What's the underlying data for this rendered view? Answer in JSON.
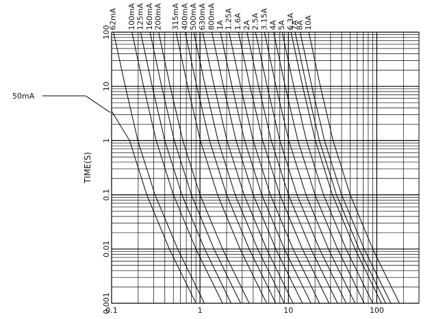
{
  "chart_data": {
    "type": "line",
    "y_label": "TIME(S)",
    "log_x": true,
    "log_y": true,
    "grid": true,
    "minor_grid": true,
    "color": "#000000",
    "xlim": [
      0.1,
      300
    ],
    "xticks": [
      0.1,
      1,
      10,
      100
    ],
    "ylim": [
      0.001,
      100
    ],
    "yticks": [
      100,
      10,
      1,
      0.1,
      0.01,
      0.001
    ],
    "series": [
      {
        "name": "50mA",
        "x": [
          0.1,
          0.16,
          0.25,
          0.45,
          0.9
        ],
        "values": [
          3.5,
          1,
          0.1,
          0.01,
          0.001
        ]
      },
      {
        "name": "62mA",
        "x": [
          0.105,
          0.143,
          0.198,
          0.31,
          0.56,
          1.12
        ],
        "values": [
          100,
          10,
          1,
          0.1,
          0.01,
          0.001
        ]
      },
      {
        "name": "100mA",
        "x": [
          0.17,
          0.23,
          0.32,
          0.5,
          0.9,
          1.8
        ],
        "values": [
          100,
          10,
          1,
          0.1,
          0.01,
          0.001
        ]
      },
      {
        "name": "125mA",
        "x": [
          0.213,
          0.288,
          0.4,
          0.625,
          1.13,
          2.25
        ],
        "values": [
          100,
          10,
          1,
          0.1,
          0.01,
          0.001
        ]
      },
      {
        "name": "160mA",
        "x": [
          0.272,
          0.368,
          0.512,
          0.8,
          1.44,
          2.88
        ],
        "values": [
          100,
          10,
          1,
          0.1,
          0.01,
          0.001
        ]
      },
      {
        "name": "200mA",
        "x": [
          0.34,
          0.46,
          0.64,
          1,
          1.8,
          3.6
        ],
        "values": [
          100,
          10,
          1,
          0.1,
          0.01,
          0.001
        ]
      },
      {
        "name": "315mA",
        "x": [
          0.536,
          0.725,
          1.01,
          1.58,
          2.84,
          5.67
        ],
        "values": [
          100,
          10,
          1,
          0.1,
          0.01,
          0.001
        ]
      },
      {
        "name": "400mA",
        "x": [
          0.68,
          0.92,
          1.28,
          2,
          3.6,
          7.2
        ],
        "values": [
          100,
          10,
          1,
          0.1,
          0.01,
          0.001
        ]
      },
      {
        "name": "500mA",
        "x": [
          0.85,
          1.15,
          1.6,
          2.5,
          4.5,
          9
        ],
        "values": [
          100,
          10,
          1,
          0.1,
          0.01,
          0.001
        ]
      },
      {
        "name": "630mA",
        "x": [
          1.07,
          1.45,
          2.02,
          3.15,
          5.67,
          11.3
        ],
        "values": [
          100,
          10,
          1,
          0.1,
          0.01,
          0.001
        ]
      },
      {
        "name": "800mA",
        "x": [
          1.36,
          1.84,
          2.56,
          4,
          7.2,
          14.4
        ],
        "values": [
          100,
          10,
          1,
          0.1,
          0.01,
          0.001
        ]
      },
      {
        "name": "1A",
        "x": [
          1.7,
          2.3,
          3.2,
          5,
          9,
          18
        ],
        "values": [
          100,
          10,
          1,
          0.1,
          0.01,
          0.001
        ]
      },
      {
        "name": "1.25A",
        "x": [
          2.13,
          2.88,
          4,
          6.25,
          11.3,
          22.5
        ],
        "values": [
          100,
          10,
          1,
          0.1,
          0.01,
          0.001
        ]
      },
      {
        "name": "1.6A",
        "x": [
          2.72,
          3.68,
          5.12,
          8,
          14.4,
          28.8
        ],
        "values": [
          100,
          10,
          1,
          0.1,
          0.01,
          0.001
        ]
      },
      {
        "name": "2A",
        "x": [
          3.4,
          4.6,
          6.4,
          10,
          18,
          36
        ],
        "values": [
          100,
          10,
          1,
          0.1,
          0.01,
          0.001
        ]
      },
      {
        "name": "2.5A",
        "x": [
          4.25,
          5.75,
          8,
          12.5,
          22.5,
          45
        ],
        "values": [
          100,
          10,
          1,
          0.1,
          0.01,
          0.001
        ]
      },
      {
        "name": "3.15A",
        "x": [
          5.36,
          7.25,
          10.1,
          15.8,
          28.4,
          56.7
        ],
        "values": [
          100,
          10,
          1,
          0.1,
          0.01,
          0.001
        ]
      },
      {
        "name": "4A",
        "x": [
          6.8,
          9.2,
          12.8,
          20,
          36,
          72
        ],
        "values": [
          100,
          10,
          1,
          0.1,
          0.01,
          0.001
        ]
      },
      {
        "name": "5A",
        "x": [
          8.5,
          11.5,
          16,
          25,
          45,
          90
        ],
        "values": [
          100,
          10,
          1,
          0.1,
          0.01,
          0.001
        ]
      },
      {
        "name": "6.3A",
        "x": [
          10.7,
          14.5,
          20.2,
          31.5,
          56.7,
          113
        ],
        "values": [
          100,
          10,
          1,
          0.1,
          0.01,
          0.001
        ]
      },
      {
        "name": "7A",
        "x": [
          11.9,
          16.1,
          22.4,
          35,
          63,
          126
        ],
        "values": [
          100,
          10,
          1,
          0.1,
          0.01,
          0.001
        ]
      },
      {
        "name": "8A",
        "x": [
          13.6,
          18.4,
          25.6,
          40,
          72,
          144
        ],
        "values": [
          100,
          10,
          1,
          0.1,
          0.01,
          0.001
        ]
      },
      {
        "name": "10A",
        "x": [
          17,
          23,
          32,
          50,
          90,
          180
        ],
        "values": [
          100,
          10,
          1,
          0.1,
          0.01,
          0.001
        ]
      }
    ]
  }
}
